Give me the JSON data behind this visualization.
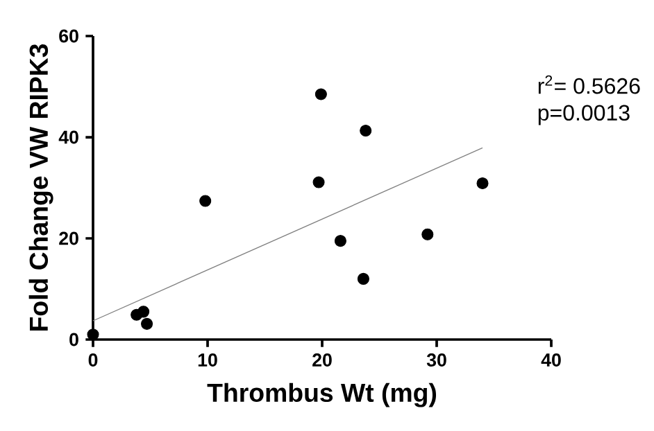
{
  "chart_data": {
    "type": "scatter",
    "xlabel": "Thrombus Wt (mg)",
    "ylabel": "Fold Change VW RIPK3",
    "xlim": [
      0,
      40
    ],
    "xticks": [
      0,
      10,
      20,
      30,
      40
    ],
    "ylim": [
      0,
      60
    ],
    "yticks": [
      0,
      20,
      40,
      60
    ],
    "grid": false,
    "annotations": [
      "r$^{2}$= 0.5626",
      "p=0.0013"
    ],
    "series": [
      {
        "marker": "circle",
        "color": "#000000",
        "x": [
          0,
          3.8,
          4.4,
          4.7,
          9.8,
          19.7,
          19.9,
          21.6,
          23.6,
          23.8,
          29.2,
          34.0
        ],
        "values": [
          1.0,
          4.9,
          5.5,
          3.1,
          27.4,
          31.1,
          48.5,
          19.5,
          12.0,
          41.3,
          20.8,
          30.9
        ]
      },
      {
        "type": "line",
        "marker": "none",
        "color": "#808080",
        "x": [
          0,
          34
        ],
        "values": [
          3.7,
          37.9
        ]
      }
    ]
  }
}
